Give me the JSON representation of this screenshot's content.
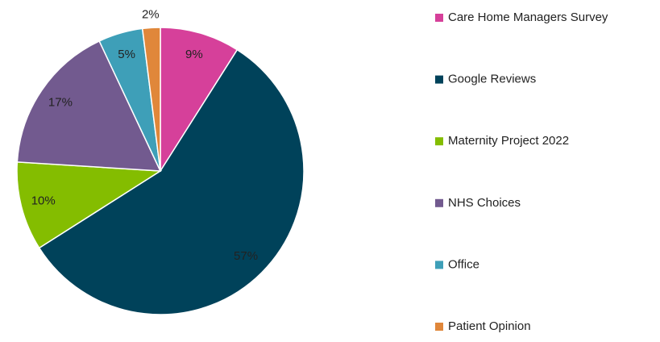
{
  "chart_data": {
    "type": "pie",
    "categories": [
      "Care Home Managers Survey",
      "Google Reviews",
      "Maternity Project 2022",
      "NHS Choices",
      "Office",
      "Patient Opinion"
    ],
    "values": [
      9,
      57,
      10,
      17,
      5,
      2
    ],
    "value_labels": [
      "9%",
      "57%",
      "10%",
      "17%",
      "5%",
      "2%"
    ],
    "colors": [
      "#d6409a",
      "#00425a",
      "#84bd00",
      "#725a8f",
      "#3e9fb8",
      "#e0873a"
    ],
    "legend": "right"
  }
}
